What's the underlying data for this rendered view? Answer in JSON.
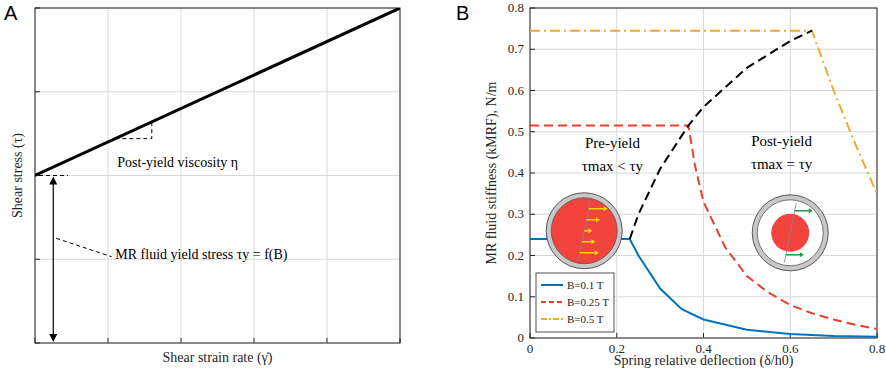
{
  "chart_data": [
    {
      "type": "line",
      "title": "A",
      "x_label": "Shear strain rate (γ̇)",
      "y_label": "Shear stress (τ)",
      "xlim": [
        0,
        5
      ],
      "ylim": [
        0,
        4
      ],
      "xticks": [
        0,
        1,
        2,
        3,
        4,
        5
      ],
      "yticks": [
        0,
        1,
        2,
        3,
        4
      ],
      "grid": true,
      "tick_labels": false,
      "annotations": [
        "Post-yield viscosity η",
        "MR fluid yield stress τy = f(B)"
      ],
      "series": [
        {
          "x": [
            0,
            5
          ],
          "values": [
            2,
            4
          ],
          "color": "#000000",
          "line_style": "solid"
        }
      ]
    },
    {
      "type": "line",
      "title": "B",
      "x_label": "Spring relative deflection (δ/h0)",
      "y_label": "MR fluid stiffness (kMRF), N/m",
      "xlim": [
        0,
        0.8
      ],
      "ylim": [
        0,
        0.8
      ],
      "xticks": [
        0,
        0.2,
        0.4,
        0.6,
        0.8
      ],
      "yticks": [
        0,
        0.1,
        0.2,
        0.3,
        0.4,
        0.5,
        0.6,
        0.7,
        0.8
      ],
      "grid": true,
      "legend": "lower left",
      "annotations": [
        "Pre-yield",
        "τmax < τy",
        "Post-yield",
        "τmax = τy"
      ],
      "series": [
        {
          "name": "B=0.1 T",
          "color": "#0072bd",
          "line_style": "solid",
          "x": [
            0,
            0.23,
            0.25,
            0.3,
            0.35,
            0.4,
            0.5,
            0.6,
            0.7,
            0.8
          ],
          "values": [
            0.24,
            0.24,
            0.2,
            0.12,
            0.07,
            0.045,
            0.02,
            0.01,
            0.005,
            0.003
          ]
        },
        {
          "name": "B=0.25 T",
          "color": "#e4422a",
          "line_style": "dashed",
          "x": [
            0,
            0.365,
            0.38,
            0.4,
            0.45,
            0.5,
            0.55,
            0.6,
            0.65,
            0.7,
            0.75,
            0.8
          ],
          "values": [
            0.515,
            0.515,
            0.42,
            0.33,
            0.22,
            0.15,
            0.11,
            0.08,
            0.06,
            0.045,
            0.032,
            0.022
          ]
        },
        {
          "name": "B=0.5 T",
          "color": "#f0a830",
          "line_style": "dashdot",
          "x": [
            0,
            0.65,
            0.7,
            0.75,
            0.8
          ],
          "values": [
            0.745,
            0.745,
            0.6,
            0.47,
            0.35
          ]
        },
        {
          "color": "#000000",
          "line_style": "dashed",
          "x": [
            0.23,
            0.25,
            0.3,
            0.365,
            0.4,
            0.5,
            0.6,
            0.65
          ],
          "values": [
            0.24,
            0.3,
            0.41,
            0.515,
            0.56,
            0.655,
            0.72,
            0.745
          ]
        }
      ]
    }
  ]
}
